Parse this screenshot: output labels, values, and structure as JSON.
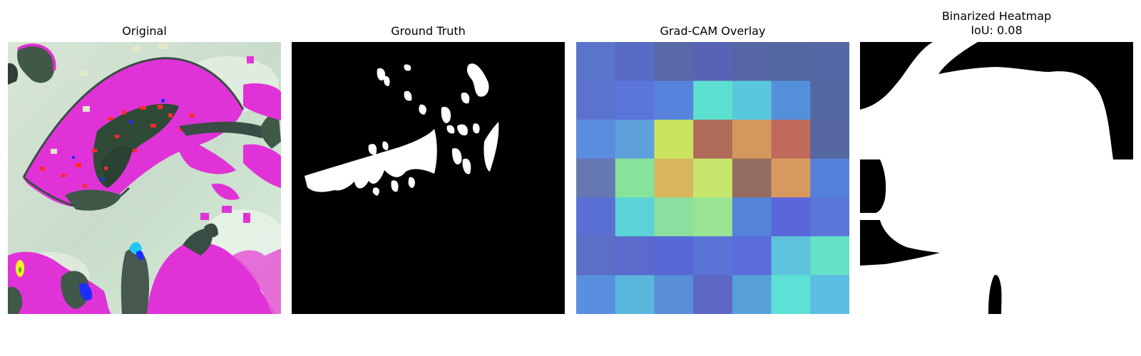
{
  "figure": {
    "panels": [
      {
        "title": "Original"
      },
      {
        "title": "Ground Truth"
      },
      {
        "title": "Grad-CAM Overlay"
      },
      {
        "title": "Binarized Heatmap",
        "subtitle": "IoU: 0.08"
      }
    ]
  },
  "gradcam": {
    "grid_size": 7,
    "cells": [
      [
        "#5b74cb",
        "#586bc5",
        "#5968a7",
        "#5764b5",
        "#5565a5",
        "#5567a1",
        "#5667a6"
      ],
      [
        "#5b73cf",
        "#5a76db",
        "#5784dd",
        "#5ee0d0",
        "#5ac8dc",
        "#548fd9",
        "#5567a2"
      ],
      [
        "#5a8ce0",
        "#5ea0db",
        "#c9e45f",
        "#b06b5a",
        "#d4975d",
        "#c06a5c",
        "#5767a4"
      ],
      [
        "#6578b1",
        "#87e29a",
        "#d7b65e",
        "#c6e76b",
        "#946b60",
        "#d79a5e",
        "#5381db"
      ],
      [
        "#5a70d5",
        "#5bd2d7",
        "#8be0a0",
        "#98e492",
        "#5484d9",
        "#5a67db",
        "#5a77d9"
      ],
      [
        "#5b6fc6",
        "#5b6acb",
        "#5867d6",
        "#5a73d7",
        "#5a6ddb",
        "#5dc3de",
        "#63e2c6"
      ],
      [
        "#5a8fdf",
        "#5bb6dd",
        "#588fd8",
        "#5d67c4",
        "#58a0da",
        "#5de0d6",
        "#5cbde3"
      ]
    ]
  },
  "colors": {
    "original_background": "#c8dcc8",
    "original_magenta": "#e033d7",
    "original_leaf_dark": "#2f4a37",
    "mask_foreground": "#ffffff",
    "mask_background": "#000000"
  }
}
